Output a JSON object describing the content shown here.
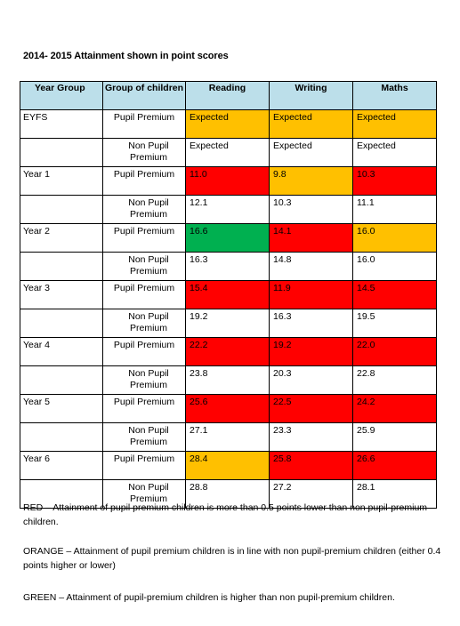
{
  "title": "2014- 2015 Attainment shown in point scores",
  "colors": {
    "red": "#ff0000",
    "orange": "#ffc000",
    "green": "#00b050",
    "header": "#bcdfea"
  },
  "headers": [
    "Year Group",
    "Group of children",
    "Reading",
    "Writing",
    "Maths"
  ],
  "rows": [
    {
      "year": "EYFS",
      "group": "Pupil Premium",
      "reading": {
        "value": "Expected",
        "status": "orange"
      },
      "writing": {
        "value": "Expected",
        "status": "orange"
      },
      "maths": {
        "value": "Expected",
        "status": "orange"
      }
    },
    {
      "year": "",
      "group": "Non Pupil Premium",
      "reading": {
        "value": "Expected",
        "status": ""
      },
      "writing": {
        "value": "Expected",
        "status": ""
      },
      "maths": {
        "value": "Expected",
        "status": ""
      }
    },
    {
      "year": "Year 1",
      "group": "Pupil Premium",
      "reading": {
        "value": "11.0",
        "status": "red"
      },
      "writing": {
        "value": "9.8",
        "status": "orange"
      },
      "maths": {
        "value": "10.3",
        "status": "red"
      }
    },
    {
      "year": "",
      "group": "Non Pupil Premium",
      "reading": {
        "value": "12.1",
        "status": ""
      },
      "writing": {
        "value": "10.3",
        "status": ""
      },
      "maths": {
        "value": "11.1",
        "status": ""
      }
    },
    {
      "year": "Year 2",
      "group": "Pupil Premium",
      "reading": {
        "value": "16.6",
        "status": "green"
      },
      "writing": {
        "value": "14.1",
        "status": "red"
      },
      "maths": {
        "value": "16.0",
        "status": "orange"
      }
    },
    {
      "year": "",
      "group": "Non Pupil Premium",
      "reading": {
        "value": "16.3",
        "status": ""
      },
      "writing": {
        "value": "14.8",
        "status": ""
      },
      "maths": {
        "value": "16.0",
        "status": ""
      }
    },
    {
      "year": "Year 3",
      "group": "Pupil Premium",
      "reading": {
        "value": "15.4",
        "status": "red"
      },
      "writing": {
        "value": "11.9",
        "status": "red"
      },
      "maths": {
        "value": "14.5",
        "status": "red"
      }
    },
    {
      "year": "",
      "group": "Non Pupil Premium",
      "reading": {
        "value": "19.2",
        "status": ""
      },
      "writing": {
        "value": "16.3",
        "status": ""
      },
      "maths": {
        "value": "19.5",
        "status": ""
      }
    },
    {
      "year": "Year 4",
      "group": "Pupil Premium",
      "reading": {
        "value": "22.2",
        "status": "red"
      },
      "writing": {
        "value": "19.2",
        "status": "red"
      },
      "maths": {
        "value": "22.0",
        "status": "red"
      }
    },
    {
      "year": "",
      "group": "Non Pupil Premium",
      "reading": {
        "value": "23.8",
        "status": ""
      },
      "writing": {
        "value": "20.3",
        "status": ""
      },
      "maths": {
        "value": "22.8",
        "status": ""
      }
    },
    {
      "year": "Year 5",
      "group": "Pupil Premium",
      "reading": {
        "value": "25.6",
        "status": "red"
      },
      "writing": {
        "value": "22.5",
        "status": "red"
      },
      "maths": {
        "value": "24.2",
        "status": "red"
      }
    },
    {
      "year": "",
      "group": "Non Pupil Premium",
      "reading": {
        "value": "27.1",
        "status": ""
      },
      "writing": {
        "value": "23.3",
        "status": ""
      },
      "maths": {
        "value": "25.9",
        "status": ""
      }
    },
    {
      "year": "Year 6",
      "group": "Pupil Premium",
      "reading": {
        "value": "28.4",
        "status": "orange"
      },
      "writing": {
        "value": "25.8",
        "status": "red"
      },
      "maths": {
        "value": "26.6",
        "status": "red"
      }
    },
    {
      "year": "",
      "group": "Non Pupil Premium",
      "reading": {
        "value": "28.8",
        "status": ""
      },
      "writing": {
        "value": "27.2",
        "status": ""
      },
      "maths": {
        "value": "28.1",
        "status": ""
      }
    }
  ],
  "legend": {
    "red": "RED – Attainment of pupil premium children is more than 0.5 points lower than non pupil-premium children.",
    "orange": "ORANGE – Attainment of pupil premium children is in line with non pupil-premium children (either 0.4 points higher or lower)",
    "green": "GREEN – Attainment of pupil-premium children is higher than non pupil-premium children."
  }
}
